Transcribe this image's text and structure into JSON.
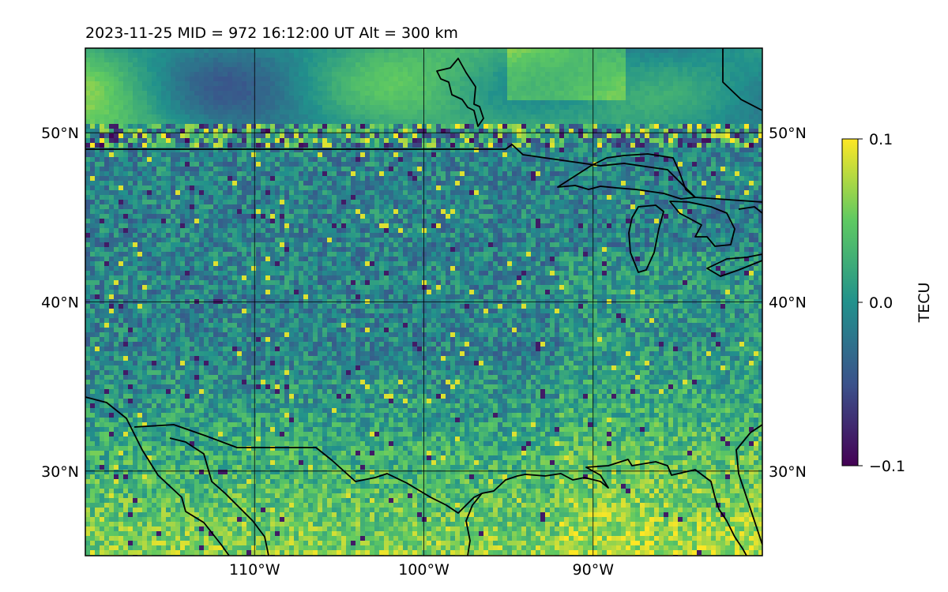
{
  "title": "2023-11-25  MID = 972    16:12:00  UT  Alt = 300 km",
  "map": {
    "lon_range": [
      -120,
      -80
    ],
    "lat_range": [
      25,
      55
    ],
    "lon_ticks": [
      {
        "value": -110,
        "label": "110°W"
      },
      {
        "value": -100,
        "label": "100°W"
      },
      {
        "value": -90,
        "label": "90°W"
      }
    ],
    "lat_ticks": [
      {
        "value": 50,
        "label": "50°N"
      },
      {
        "value": 40,
        "label": "40°N"
      },
      {
        "value": 30,
        "label": "30°N"
      }
    ],
    "gridlines": true,
    "field": "TEC perturbation (dTEC)",
    "coastline_color": "#000000"
  },
  "colorbar": {
    "label": "TECU",
    "min": -0.1,
    "max": 0.1,
    "ticks": [
      {
        "value": 0.1,
        "label": "0.1"
      },
      {
        "value": 0.0,
        "label": "0.0"
      },
      {
        "value": -0.1,
        "label": "−0.1"
      }
    ],
    "colormap": "viridis",
    "colors": [
      "#440154",
      "#3b528b",
      "#21918c",
      "#5ec962",
      "#fde725"
    ]
  }
}
